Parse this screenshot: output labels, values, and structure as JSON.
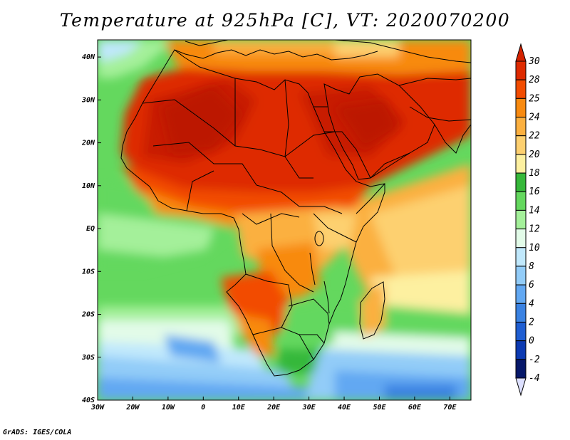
{
  "title": "Temperature at 925hPa [C], VT: 2020070200",
  "footer": "GrADS: IGES/COLA",
  "map": {
    "lon_range": [
      -30,
      76
    ],
    "lat_range": [
      -40,
      44
    ],
    "lon_ticks": [
      {
        "value": -30,
        "label": "30W"
      },
      {
        "value": -20,
        "label": "20W"
      },
      {
        "value": -10,
        "label": "10W"
      },
      {
        "value": 0,
        "label": "0"
      },
      {
        "value": 10,
        "label": "10E"
      },
      {
        "value": 20,
        "label": "20E"
      },
      {
        "value": 30,
        "label": "30E"
      },
      {
        "value": 40,
        "label": "40E"
      },
      {
        "value": 50,
        "label": "50E"
      },
      {
        "value": 60,
        "label": "60E"
      },
      {
        "value": 70,
        "label": "70E"
      }
    ],
    "lat_ticks": [
      {
        "value": 40,
        "label": "40N"
      },
      {
        "value": 30,
        "label": "30N"
      },
      {
        "value": 20,
        "label": "20N"
      },
      {
        "value": 10,
        "label": "10N"
      },
      {
        "value": 0,
        "label": "EQ"
      },
      {
        "value": -10,
        "label": "10S"
      },
      {
        "value": -20,
        "label": "20S"
      },
      {
        "value": -30,
        "label": "30S"
      },
      {
        "value": -40,
        "label": "40S"
      }
    ]
  },
  "colorbar": {
    "levels": [
      "30",
      "28",
      "25",
      "24",
      "22",
      "20",
      "18",
      "16",
      "14",
      "12",
      "10",
      "8",
      "6",
      "4",
      "2",
      "0",
      "-2",
      "-4"
    ],
    "colors": [
      "#a81000",
      "#de2a00",
      "#f24c00",
      "#f88a10",
      "#fbb040",
      "#fdd070",
      "#fdf0a0",
      "#36b83a",
      "#64d85e",
      "#a4f09a",
      "#e2fbe8",
      "#c0e8fc",
      "#92ccf8",
      "#62a8f2",
      "#3a82e2",
      "#1f5ed2",
      "#0c3ab2",
      "#06186a"
    ],
    "top_color": "#d42200",
    "bottom_color": "#dde0ff"
  }
}
